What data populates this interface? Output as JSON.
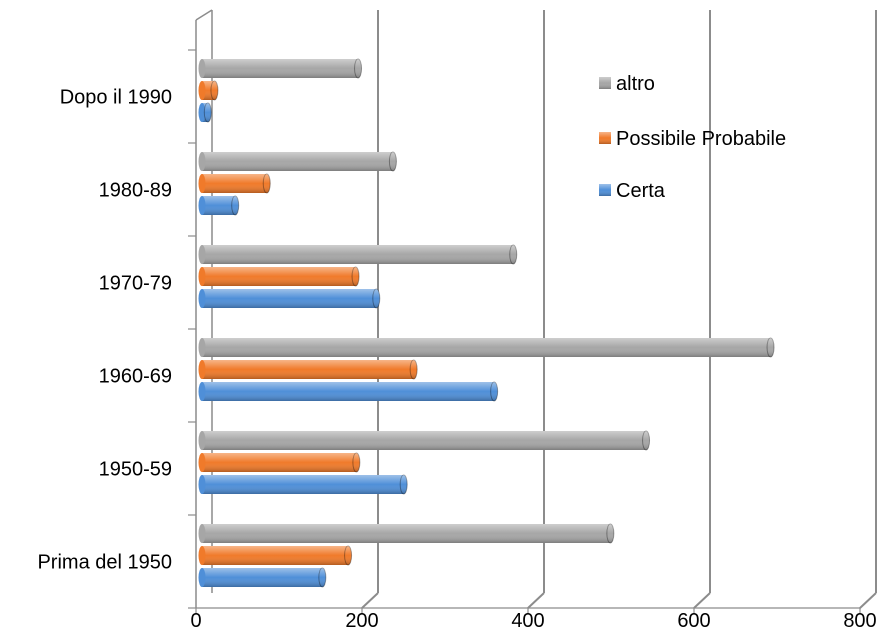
{
  "chart_data": {
    "type": "bar",
    "orientation": "horizontal",
    "style": "3d-cylinder",
    "categories": [
      "Prima del 1950",
      "1950-59",
      "1960-69",
      "1970-79",
      "1980-89",
      "Dopo il 1990"
    ],
    "series": [
      {
        "name": "Certa",
        "color": "#4F8FD8",
        "values": [
          145,
          243,
          352,
          210,
          40,
          7
        ]
      },
      {
        "name": "Possibile Probabile",
        "color": "#F07A2A",
        "values": [
          176,
          186,
          255,
          185,
          78,
          15
        ]
      },
      {
        "name": "altro",
        "color": "#A6A6A6",
        "values": [
          492,
          535,
          685,
          375,
          230,
          188
        ]
      }
    ],
    "xlim": [
      0,
      800
    ],
    "x_ticks": [
      "0",
      "200",
      "400",
      "600",
      "800"
    ],
    "grid": true,
    "legend_position": "top-right",
    "legend_order": [
      "altro",
      "Possibile Probabile",
      "Certa"
    ],
    "title": "",
    "xlabel": "",
    "ylabel": ""
  }
}
